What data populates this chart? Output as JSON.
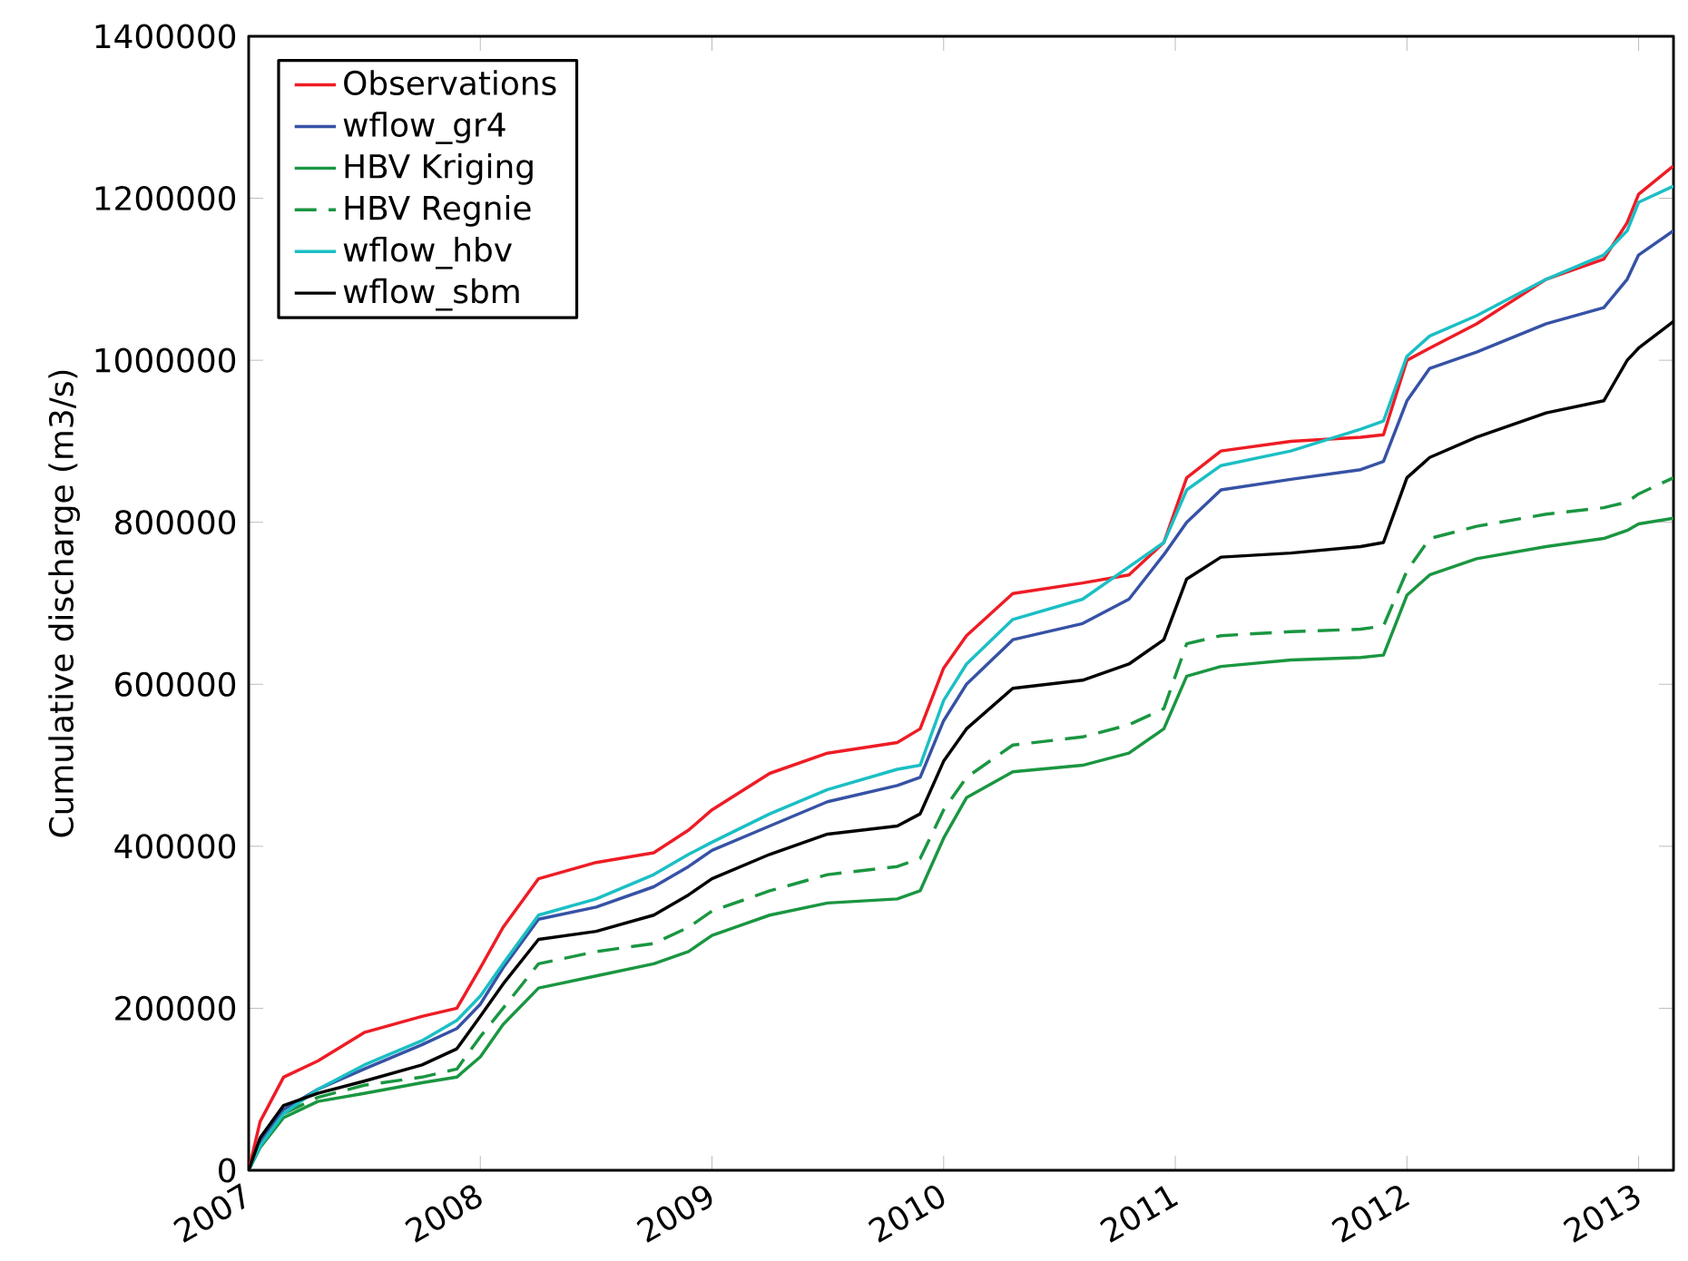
{
  "chart_data": {
    "type": "line",
    "ylabel": "Cumulative discharge (m3/s)",
    "x": [
      "2007-01-01",
      "2007-01-19",
      "2007-02-25",
      "2007-04-20",
      "2007-07-02",
      "2007-10-01",
      "2007-11-25",
      "2008-01-01",
      "2008-02-06",
      "2008-04-02",
      "2008-07-02",
      "2008-10-01",
      "2008-11-25",
      "2009-01-01",
      "2009-04-02",
      "2009-07-02",
      "2009-10-20",
      "2009-11-25",
      "2010-01-01",
      "2010-02-06",
      "2010-04-20",
      "2010-08-08",
      "2010-10-20",
      "2010-12-14",
      "2011-01-19",
      "2011-03-14",
      "2011-07-02",
      "2011-10-20",
      "2011-11-25",
      "2012-01-01",
      "2012-02-06",
      "2012-04-20",
      "2012-08-08",
      "2012-11-07",
      "2012-12-14",
      "2013-01-01",
      "2013-02-25"
    ],
    "series": [
      {
        "name": "Observations",
        "color": "#ee1c25",
        "values": [
          0,
          60000,
          115000,
          135000,
          170000,
          190000,
          200000,
          250000,
          300000,
          360000,
          380000,
          392000,
          420000,
          445000,
          490000,
          515000,
          528000,
          545000,
          620000,
          660000,
          712000,
          725000,
          735000,
          775000,
          855000,
          888000,
          900000,
          905000,
          908000,
          1000000,
          1015000,
          1045000,
          1100000,
          1125000,
          1170000,
          1205000,
          1240000
        ]
      },
      {
        "name": "wflow_gr4",
        "color": "#3652a5",
        "values": [
          0,
          35000,
          75000,
          100000,
          125000,
          155000,
          175000,
          205000,
          250000,
          310000,
          325000,
          350000,
          375000,
          395000,
          425000,
          455000,
          475000,
          485000,
          555000,
          600000,
          655000,
          675000,
          705000,
          760000,
          800000,
          840000,
          853000,
          865000,
          875000,
          950000,
          990000,
          1010000,
          1045000,
          1065000,
          1100000,
          1130000,
          1160000
        ]
      },
      {
        "name": "HBV Kriging",
        "color": "#1a9641",
        "values": [
          0,
          28000,
          65000,
          85000,
          95000,
          108000,
          115000,
          140000,
          180000,
          225000,
          240000,
          255000,
          270000,
          290000,
          315000,
          330000,
          335000,
          345000,
          410000,
          460000,
          492000,
          500000,
          515000,
          545000,
          610000,
          622000,
          630000,
          633000,
          636000,
          710000,
          735000,
          755000,
          770000,
          780000,
          790000,
          798000,
          805000
        ]
      },
      {
        "name": "HBV Regnie",
        "color": "#1a9641",
        "line_style": "dashed",
        "values": [
          0,
          30000,
          70000,
          90000,
          105000,
          115000,
          125000,
          165000,
          200000,
          255000,
          270000,
          280000,
          300000,
          320000,
          345000,
          365000,
          375000,
          385000,
          445000,
          485000,
          525000,
          535000,
          550000,
          570000,
          650000,
          660000,
          665000,
          668000,
          672000,
          740000,
          780000,
          795000,
          810000,
          818000,
          825000,
          835000,
          855000
        ]
      },
      {
        "name": "wflow_hbv",
        "color": "#1bbfc4",
        "values": [
          0,
          30000,
          70000,
          100000,
          130000,
          160000,
          185000,
          215000,
          255000,
          315000,
          335000,
          365000,
          390000,
          405000,
          440000,
          470000,
          495000,
          500000,
          580000,
          625000,
          680000,
          705000,
          745000,
          775000,
          840000,
          870000,
          888000,
          915000,
          925000,
          1005000,
          1030000,
          1055000,
          1100000,
          1130000,
          1160000,
          1195000,
          1215000
        ]
      },
      {
        "name": "wflow_sbm",
        "color": "#000000",
        "values": [
          0,
          40000,
          80000,
          95000,
          110000,
          130000,
          150000,
          190000,
          230000,
          285000,
          295000,
          315000,
          340000,
          360000,
          390000,
          415000,
          425000,
          440000,
          505000,
          545000,
          595000,
          605000,
          625000,
          655000,
          730000,
          757000,
          762000,
          770000,
          775000,
          855000,
          880000,
          905000,
          935000,
          950000,
          1000000,
          1015000,
          1048000
        ]
      }
    ],
    "xlim": [
      "2007-01-01",
      "2013-02-25"
    ],
    "xticks": [
      "2007",
      "2008",
      "2009",
      "2010",
      "2011",
      "2012",
      "2013"
    ],
    "ylim": [
      0,
      1400000
    ],
    "yticks": [
      0,
      200000,
      400000,
      600000,
      800000,
      1000000,
      1200000,
      1400000
    ],
    "legend": "top left"
  }
}
